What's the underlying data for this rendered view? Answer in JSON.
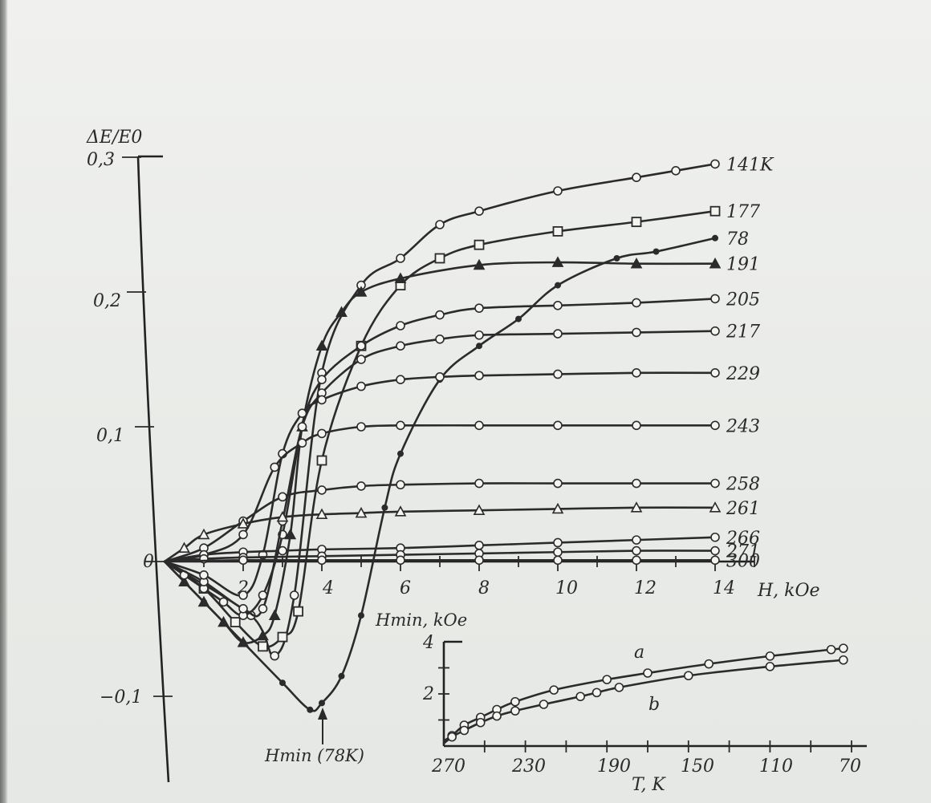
{
  "chart_data": [
    {
      "type": "line",
      "title": "",
      "ylabel": "ΔE/E0",
      "xlabel": "H, kOe",
      "xlim": [
        0,
        15
      ],
      "ylim": [
        -0.15,
        0.3
      ],
      "x_ticks": [
        "2",
        "4",
        "6",
        "8",
        "10",
        "12",
        "14"
      ],
      "y_ticks": [
        "0,3",
        "0,2",
        "0,1",
        "0",
        "−0,1"
      ],
      "annotation": "Hmin (78K)",
      "grid": false,
      "series": [
        {
          "name": "141K",
          "x": [
            0,
            2.2,
            2.8,
            3.3,
            4.0,
            5.0,
            6.0,
            7.0,
            8.0,
            10.0,
            12.0,
            13.0,
            14.0
          ],
          "y": [
            0,
            -0.04,
            -0.07,
            -0.025,
            0.14,
            0.205,
            0.225,
            0.25,
            0.26,
            0.275,
            0.285,
            0.29,
            0.295
          ]
        },
        {
          "name": "177",
          "x": [
            0,
            1.0,
            1.8,
            2.5,
            3.0,
            3.4,
            4.0,
            5.0,
            6.0,
            7.0,
            8.0,
            10.0,
            12.0,
            14.0
          ],
          "y": [
            0,
            -0.02,
            -0.045,
            -0.063,
            -0.056,
            -0.037,
            0.075,
            0.16,
            0.205,
            0.225,
            0.235,
            0.245,
            0.252,
            0.26
          ]
        },
        {
          "name": "78",
          "x": [
            0,
            1.0,
            2.0,
            3.0,
            3.7,
            4.0,
            4.5,
            5.0,
            5.6,
            6.0,
            7.0,
            8.0,
            9.0,
            10.0,
            11.5,
            12.5,
            14.0
          ],
          "y": [
            0,
            -0.03,
            -0.06,
            -0.09,
            -0.11,
            -0.105,
            -0.085,
            -0.04,
            0.04,
            0.08,
            0.135,
            0.16,
            0.18,
            0.205,
            0.225,
            0.23,
            0.24
          ]
        },
        {
          "name": "191",
          "x": [
            0,
            0.5,
            1.0,
            1.5,
            2.0,
            2.5,
            2.8,
            3.2,
            3.5,
            4.0,
            4.5,
            5.0,
            6.0,
            8.0,
            10.0,
            12.0,
            14.0
          ],
          "y": [
            0,
            -0.015,
            -0.03,
            -0.045,
            -0.06,
            -0.055,
            -0.04,
            0.02,
            0.1,
            0.16,
            0.185,
            0.2,
            0.21,
            0.22,
            0.222,
            0.221,
            0.221
          ]
        },
        {
          "name": "205",
          "x": [
            0,
            0.5,
            1.0,
            1.5,
            2.0,
            2.5,
            3.0,
            3.5,
            4.0,
            5.0,
            6.0,
            7.0,
            8.0,
            10.0,
            12.0,
            14.0
          ],
          "y": [
            0,
            -0.01,
            -0.02,
            -0.03,
            -0.04,
            -0.025,
            0.02,
            0.1,
            0.135,
            0.16,
            0.175,
            0.183,
            0.188,
            0.19,
            0.192,
            0.195
          ]
        },
        {
          "name": "217",
          "x": [
            0,
            1.0,
            2.0,
            2.5,
            3.0,
            3.5,
            4.0,
            5.0,
            6.0,
            7.0,
            8.0,
            10.0,
            12.0,
            14.0
          ],
          "y": [
            0,
            -0.015,
            -0.035,
            -0.035,
            0.03,
            0.1,
            0.125,
            0.15,
            0.16,
            0.165,
            0.168,
            0.169,
            0.17,
            0.171
          ]
        },
        {
          "name": "229",
          "x": [
            0,
            1.0,
            2.0,
            2.5,
            3.0,
            3.5,
            4.0,
            5.0,
            6.0,
            7.0,
            8.0,
            10.0,
            12.0,
            14.0
          ],
          "y": [
            0,
            -0.01,
            -0.025,
            0.005,
            0.08,
            0.11,
            0.12,
            0.13,
            0.135,
            0.137,
            0.138,
            0.139,
            0.14,
            0.14
          ]
        },
        {
          "name": "243",
          "x": [
            0,
            1.0,
            2.0,
            2.8,
            3.5,
            4.0,
            5.0,
            6.0,
            8.0,
            10.0,
            12.0,
            14.0
          ],
          "y": [
            0,
            0.005,
            0.02,
            0.07,
            0.088,
            0.095,
            0.1,
            0.101,
            0.101,
            0.101,
            0.101,
            0.101
          ]
        },
        {
          "name": "258",
          "x": [
            0,
            1.0,
            2.0,
            3.0,
            4.0,
            5.0,
            6.0,
            8.0,
            10.0,
            12.0,
            14.0
          ],
          "y": [
            0,
            0.01,
            0.03,
            0.048,
            0.053,
            0.056,
            0.057,
            0.058,
            0.058,
            0.058,
            0.058
          ]
        },
        {
          "name": "261",
          "x": [
            0,
            0.5,
            1.0,
            2.0,
            3.0,
            4.0,
            5.0,
            6.0,
            8.0,
            10.0,
            12.0,
            14.0
          ],
          "y": [
            0,
            0.01,
            0.02,
            0.028,
            0.033,
            0.035,
            0.036,
            0.037,
            0.038,
            0.039,
            0.04,
            0.04
          ]
        },
        {
          "name": "266",
          "x": [
            0,
            1.0,
            2.0,
            3.0,
            4.0,
            6.0,
            8.0,
            10.0,
            12.0,
            14.0
          ],
          "y": [
            0,
            0.005,
            0.007,
            0.008,
            0.009,
            0.01,
            0.012,
            0.014,
            0.016,
            0.018
          ]
        },
        {
          "name": "271",
          "x": [
            0,
            1.0,
            2.0,
            4.0,
            6.0,
            8.0,
            10.0,
            12.0,
            14.0
          ],
          "y": [
            0,
            0.002,
            0.003,
            0.004,
            0.005,
            0.006,
            0.007,
            0.008,
            0.008
          ]
        },
        {
          "name": "300",
          "x": [
            0,
            2.0,
            4.0,
            6.0,
            8.0,
            10.0,
            12.0,
            14.0
          ],
          "y": [
            0,
            0.001,
            0.001,
            0.001,
            0.001,
            0.001,
            0.001,
            0.001
          ]
        }
      ]
    },
    {
      "type": "line",
      "title": "",
      "ylabel": "Hmin, kOe",
      "xlabel": "T, K",
      "xlim": [
        270,
        60
      ],
      "ylim": [
        0,
        4
      ],
      "x_ticks": [
        "270",
        "230",
        "190",
        "150",
        "110",
        "70"
      ],
      "y_ticks": [
        "4",
        "2"
      ],
      "series": [
        {
          "name": "a",
          "x": [
            270,
            266,
            260,
            252,
            244,
            235,
            216,
            190,
            170,
            140,
            110,
            80,
            74
          ],
          "y": [
            0.2,
            0.4,
            0.8,
            1.1,
            1.4,
            1.7,
            2.15,
            2.55,
            2.8,
            3.15,
            3.45,
            3.7,
            3.75
          ]
        },
        {
          "name": "b",
          "x": [
            270,
            266,
            260,
            252,
            244,
            235,
            221,
            203,
            195,
            184,
            150,
            110,
            74
          ],
          "y": [
            0.1,
            0.35,
            0.6,
            0.9,
            1.15,
            1.35,
            1.6,
            1.9,
            2.05,
            2.25,
            2.7,
            3.05,
            3.3
          ]
        }
      ]
    }
  ]
}
